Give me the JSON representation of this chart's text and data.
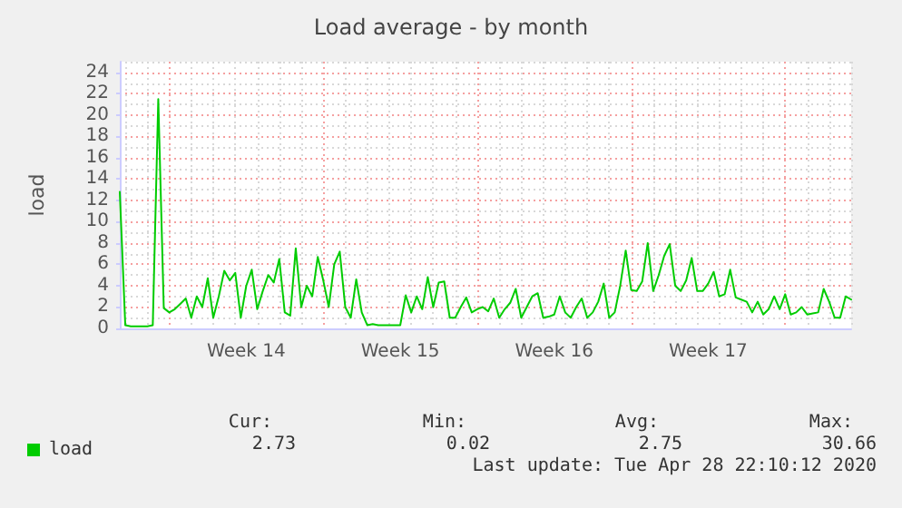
{
  "chart_data": {
    "type": "line",
    "title": "Load average - by month",
    "ylabel": "load",
    "categories": [
      null,
      null,
      null,
      null,
      null,
      null,
      null,
      null,
      null,
      null,
      null,
      null,
      null,
      null,
      null,
      null,
      null,
      null,
      null,
      null,
      null,
      null,
      null,
      "Week 14",
      null,
      null,
      null,
      null,
      null,
      null,
      null,
      null,
      null,
      null,
      null,
      null,
      null,
      null,
      null,
      null,
      null,
      null,
      null,
      null,
      null,
      null,
      null,
      null,
      null,
      null,
      null,
      "Week 15",
      null,
      null,
      null,
      null,
      null,
      null,
      null,
      null,
      null,
      null,
      null,
      null,
      null,
      null,
      null,
      null,
      null,
      null,
      null,
      null,
      null,
      null,
      null,
      null,
      null,
      null,
      null,
      "Week 16",
      null,
      null,
      null,
      null,
      null,
      null,
      null,
      null,
      null,
      null,
      null,
      null,
      null,
      null,
      null,
      null,
      null,
      null,
      null,
      null,
      null,
      null,
      null,
      null,
      null,
      null,
      null,
      "Week 17",
      null,
      null,
      null,
      null,
      null,
      null,
      null,
      null,
      null,
      null,
      null,
      null,
      null,
      null,
      null,
      null,
      null,
      null,
      null,
      null,
      null,
      null,
      null,
      null,
      null,
      null
    ],
    "ylim": [
      0,
      25
    ],
    "yticks": [
      0,
      2,
      4,
      6,
      8,
      10,
      12,
      14,
      16,
      18,
      20,
      22,
      24
    ],
    "grid": true,
    "legend": "bottom left",
    "marker": "none",
    "line_style": "solid",
    "annotations": [
      "Cur:",
      "Min:",
      "Avg:",
      "Max:",
      "2.73",
      "0.02",
      "2.75",
      "30.66",
      "Last update: Tue Apr 28 22:10:12 2020"
    ],
    "series": [
      {
        "name": "load",
        "color": "#00cc00",
        "values": [
          12.8,
          0.3,
          0.2,
          0.2,
          0.2,
          0.2,
          0.3,
          21.5,
          1.9,
          1.5,
          1.8,
          2.3,
          2.8,
          1.0,
          3.0,
          2.0,
          4.7,
          1.0,
          3.0,
          5.4,
          4.5,
          5.2,
          1.0,
          4.0,
          5.5,
          1.8,
          3.5,
          5.0,
          4.3,
          6.5,
          1.5,
          1.2,
          7.5,
          2.0,
          4.0,
          3.0,
          6.7,
          4.5,
          2.0,
          6.0,
          7.2,
          2.0,
          1.0,
          4.6,
          1.5,
          0.3,
          0.4,
          0.3,
          0.3,
          0.3,
          0.3,
          0.3,
          3.1,
          1.5,
          3.0,
          1.8,
          4.8,
          2.0,
          4.3,
          4.4,
          1.0,
          1.0,
          2.0,
          2.9,
          1.5,
          1.8,
          2.0,
          1.6,
          2.8,
          1.0,
          1.8,
          2.4,
          3.7,
          1.0,
          2.0,
          3.0,
          3.3,
          1.0,
          1.1,
          1.3,
          3.0,
          1.5,
          1.0,
          2.0,
          2.8,
          1.0,
          1.5,
          2.5,
          4.2,
          1.0,
          1.5,
          4.0,
          7.3,
          3.6,
          3.5,
          4.4,
          8.0,
          3.5,
          5.0,
          6.8,
          7.9,
          4.0,
          3.5,
          4.5,
          6.6,
          3.5,
          3.5,
          4.2,
          5.3,
          3.0,
          3.2,
          5.5,
          2.9,
          2.7,
          2.5,
          1.5,
          2.5,
          1.3,
          1.8,
          3.0,
          1.8,
          3.2,
          1.3,
          1.5,
          2.0,
          1.3,
          1.4,
          1.5,
          3.7,
          2.5,
          1.0,
          1.0,
          3.0,
          2.7
        ]
      }
    ]
  }
}
